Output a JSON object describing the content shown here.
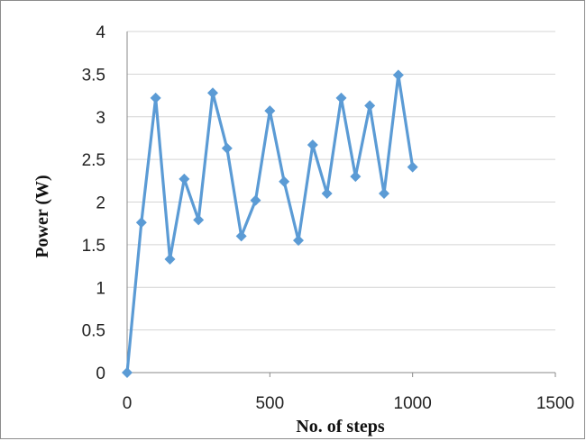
{
  "chart_data": {
    "type": "line",
    "xlabel": "No. of steps",
    "ylabel": "Power (W)",
    "xlim": [
      0,
      1500
    ],
    "ylim": [
      0,
      4
    ],
    "x_ticks": [
      0,
      500,
      1000,
      1500
    ],
    "y_ticks": [
      0,
      0.5,
      1,
      1.5,
      2,
      2.5,
      3,
      3.5,
      4
    ],
    "x_tick_labels": [
      "0",
      "500",
      "1000",
      "1500"
    ],
    "y_tick_labels": [
      "0",
      "0.5",
      "1",
      "1.5",
      "2",
      "2.5",
      "3",
      "3.5",
      "4"
    ],
    "grid": "horizontal",
    "legend": "none",
    "marker": "diamond",
    "series_color": "#5b9bd5",
    "series": [
      {
        "x": [
          0,
          50,
          100,
          150,
          200,
          250,
          300,
          350,
          400,
          450,
          500,
          550,
          600,
          650,
          700,
          750,
          800,
          850,
          900,
          950,
          1000
        ],
        "values": [
          0,
          1.76,
          3.22,
          1.33,
          2.27,
          1.79,
          3.28,
          2.63,
          1.6,
          2.02,
          3.07,
          2.24,
          1.55,
          2.67,
          2.1,
          3.22,
          2.3,
          3.13,
          2.1,
          3.49,
          2.41
        ]
      }
    ]
  }
}
